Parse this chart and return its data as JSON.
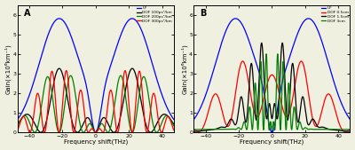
{
  "title_A": "A",
  "title_B": "B",
  "xlabel": "Frequency shift(THz)",
  "ylabel": "Gain(×10⁶km⁻¹)",
  "xlim": [
    -47,
    47
  ],
  "ylim": [
    0,
    6.5
  ],
  "yticks": [
    0,
    1,
    2,
    3,
    4,
    5,
    6
  ],
  "xticks": [
    -40,
    -20,
    0,
    20,
    40
  ],
  "legend_A": [
    "UF",
    "DOF 100ps²/km",
    "DOF 200ps²/km",
    "DOF 300ps²/km"
  ],
  "legend_B": [
    "UF",
    "DOF 0.5cm",
    "DOF 1.5cm",
    "DOF 3cm"
  ],
  "colors_A": [
    "blue",
    "black",
    "green",
    "red"
  ],
  "colors_B": [
    "blue",
    "red",
    "black",
    "green"
  ],
  "background": "#f0f0e0"
}
